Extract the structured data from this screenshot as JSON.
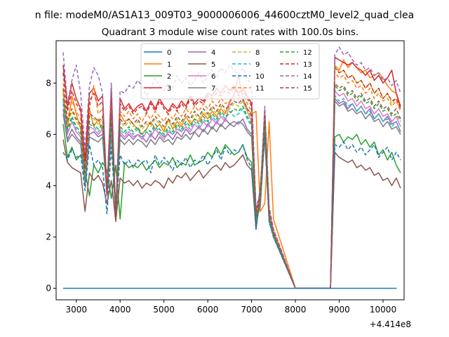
{
  "suptitle": "n file: modeM0/AS1A13_009T03_9000006006_44600cztM0_level2_quad_clea",
  "chart_data": {
    "type": "line",
    "title": "Quadrant 3 module wise count rates with 100.0s bins.",
    "xlabel": "",
    "ylabel": "",
    "offset_label": "+4.414e8",
    "x_offset": 441400000,
    "xlim": [
      2540,
      10480
    ],
    "ylim": [
      -0.45,
      9.65
    ],
    "xticks": [
      3000,
      4000,
      5000,
      6000,
      7000,
      8000,
      9000,
      10000
    ],
    "xtick_labels": [
      "3000",
      "4000",
      "5000",
      "6000",
      "7000",
      "8000",
      "9000",
      "10000"
    ],
    "yticks": [
      0,
      2,
      4,
      6,
      8
    ],
    "ytick_labels": [
      "0",
      "2",
      "4",
      "6",
      "8"
    ],
    "grid": false,
    "legend_position": "top-center",
    "legend_columns": 4,
    "x_start": 2700,
    "x_step": 100,
    "gap_x_range": [
      8000,
      8800
    ],
    "series": [
      {
        "name": "0",
        "color": "#1f77b4",
        "dash": "solid",
        "flat": 0
      },
      {
        "name": "1",
        "color": "#ff7f0e",
        "dash": "solid",
        "pre": [
          7.7,
          6.2,
          7.5,
          6.8,
          6.2,
          4.3,
          7.0,
          6.3,
          6.6,
          6.1,
          3.9,
          7.3,
          3.0,
          6.8,
          6.5,
          6.6,
          6.4,
          6.2,
          6.0,
          6.2,
          6.5,
          6.2,
          6.4,
          6.1,
          6.6,
          6.2,
          6.5,
          6.3,
          6.7,
          6.4,
          6.6,
          6.5,
          6.8,
          6.6,
          6.9,
          6.7,
          7.0,
          6.8,
          7.3,
          7.5,
          8.3,
          7.4,
          7.0,
          6.8,
          6.9,
          3.0,
          3.3,
          6.5,
          2.7
        ],
        "post": [
          8.7,
          8.5,
          8.9,
          8.6,
          8.8,
          8.6,
          8.4,
          8.5,
          8.2,
          8.3,
          8.4,
          8.2,
          7.9,
          7.7,
          7.6,
          7.0
        ]
      },
      {
        "name": "2",
        "color": "#2ca02c",
        "dash": "solid",
        "pre": [
          6.4,
          5.1,
          5.5,
          5.0,
          5.2,
          4.6,
          3.6,
          4.8,
          4.5,
          4.9,
          4.6,
          3.5,
          4.8,
          2.7,
          4.9,
          4.7,
          4.8,
          4.7,
          4.9,
          4.6,
          4.8,
          5.0,
          4.7,
          4.9,
          4.8,
          5.1,
          4.7,
          4.9,
          4.8,
          5.2,
          4.8,
          4.9,
          5.0,
          5.3,
          5.1,
          5.5,
          5.2,
          5.6,
          5.4,
          5.2,
          5.3,
          5.6,
          5.1,
          4.9,
          2.5,
          4.0,
          6.4,
          2.6,
          2.0
        ],
        "post": [
          5.9,
          6.0,
          5.7,
          5.9,
          5.8,
          6.0,
          5.6,
          5.8,
          5.5,
          5.7,
          5.2,
          5.4,
          5.0,
          5.3,
          4.8,
          4.5
        ]
      },
      {
        "name": "3",
        "color": "#d62728",
        "dash": "solid",
        "pre": [
          8.7,
          7.1,
          8.0,
          7.4,
          7.0,
          5.0,
          7.6,
          7.8,
          7.3,
          7.5,
          3.6,
          7.8,
          2.7,
          7.4,
          7.0,
          7.2,
          6.9,
          7.1,
          7.2,
          6.9,
          7.3,
          7.0,
          7.4,
          7.1,
          6.9,
          7.2,
          7.0,
          7.3,
          7.1,
          7.5,
          7.2,
          7.4,
          7.3,
          7.6,
          7.5,
          7.8,
          7.6,
          7.9,
          7.7,
          7.9,
          7.6,
          7.8,
          7.5,
          7.2,
          3.0,
          3.5,
          6.8,
          3.0,
          2.2
        ],
        "post": [
          9.0,
          8.9,
          8.8,
          8.7,
          8.8,
          8.6,
          8.5,
          8.3,
          8.5,
          8.1,
          8.3,
          8.0,
          8.2,
          8.5,
          7.6,
          7.1
        ]
      },
      {
        "name": "4",
        "color": "#9467bd",
        "dash": "solid",
        "pre": [
          7.0,
          5.8,
          6.2,
          5.9,
          5.7,
          4.0,
          6.0,
          6.1,
          5.9,
          6.0,
          3.6,
          6.2,
          2.8,
          6.0,
          5.8,
          6.0,
          5.8,
          6.0,
          5.9,
          5.7,
          6.0,
          5.8,
          6.1,
          5.9,
          6.0,
          5.8,
          6.1,
          5.9,
          6.2,
          6.0,
          6.1,
          6.3,
          6.1,
          6.4,
          6.2,
          6.5,
          6.3,
          6.6,
          6.4,
          6.5,
          6.4,
          6.6,
          6.2,
          6.0,
          2.6,
          3.2,
          6.0,
          2.7,
          2.0
        ],
        "post": [
          7.4,
          7.2,
          7.3,
          7.0,
          7.2,
          6.9,
          7.1,
          6.8,
          7.0,
          6.6,
          6.8,
          6.5,
          6.7,
          6.4,
          6.5,
          6.1
        ]
      },
      {
        "name": "5",
        "color": "#8c564b",
        "dash": "solid",
        "pre": [
          5.8,
          4.9,
          4.7,
          4.6,
          4.5,
          3.0,
          4.5,
          4.2,
          4.4,
          4.1,
          3.3,
          4.2,
          2.6,
          4.3,
          4.1,
          4.2,
          4.0,
          4.2,
          3.9,
          4.1,
          4.0,
          4.2,
          4.1,
          3.9,
          4.3,
          4.1,
          4.4,
          4.3,
          4.5,
          4.2,
          4.4,
          4.6,
          4.3,
          4.5,
          4.7,
          4.8,
          4.6,
          4.9,
          4.7,
          4.8,
          5.0,
          5.2,
          4.8,
          4.6,
          2.3,
          3.6,
          5.9,
          2.7,
          2.1
        ],
        "post": [
          5.3,
          5.1,
          5.0,
          4.9,
          5.0,
          4.7,
          4.8,
          4.6,
          4.7,
          4.4,
          4.5,
          4.2,
          4.3,
          4.0,
          4.3,
          3.9
        ]
      },
      {
        "name": "6",
        "color": "#e377c2",
        "dash": "solid",
        "pre": [
          7.3,
          6.0,
          6.5,
          6.1,
          5.9,
          4.2,
          6.3,
          6.2,
          6.0,
          6.2,
          3.7,
          6.3,
          2.9,
          6.1,
          5.9,
          6.1,
          5.9,
          6.0,
          5.8,
          6.1,
          5.9,
          6.2,
          6.0,
          5.8,
          6.1,
          6.0,
          6.2,
          6.1,
          6.3,
          6.1,
          6.4,
          6.2,
          6.5,
          6.3,
          6.6,
          6.4,
          6.7,
          6.5,
          7.2,
          7.6,
          8.3,
          7.3,
          6.9,
          6.5,
          2.8,
          3.4,
          6.3,
          2.8,
          2.1
        ],
        "post": [
          7.7,
          7.5,
          7.6,
          7.3,
          7.4,
          7.1,
          7.3,
          7.0,
          7.1,
          6.8,
          7.0,
          6.7,
          6.8,
          6.5,
          6.7,
          6.3
        ]
      },
      {
        "name": "7",
        "color": "#7f7f7f",
        "dash": "solid",
        "pre": [
          6.8,
          5.7,
          6.0,
          5.8,
          5.6,
          4.0,
          5.9,
          5.8,
          5.7,
          5.9,
          3.6,
          6.0,
          2.8,
          5.8,
          5.6,
          5.8,
          5.6,
          5.8,
          5.7,
          5.5,
          5.8,
          5.6,
          5.9,
          5.7,
          5.8,
          5.6,
          5.9,
          5.8,
          6.0,
          5.8,
          6.1,
          5.9,
          6.2,
          6.0,
          6.3,
          6.1,
          6.4,
          6.2,
          6.4,
          6.3,
          6.5,
          6.4,
          6.1,
          5.9,
          2.6,
          3.3,
          6.1,
          2.7,
          2.0
        ],
        "post": [
          7.3,
          7.1,
          7.2,
          6.9,
          7.0,
          6.8,
          6.9,
          6.6,
          6.8,
          6.5,
          6.6,
          6.3,
          6.5,
          6.2,
          6.3,
          6.0
        ]
      },
      {
        "name": "8",
        "color": "#bcbd22",
        "dash": "5,3",
        "pre": [
          7.6,
          6.4,
          6.9,
          6.5,
          6.3,
          4.4,
          6.7,
          6.6,
          6.4,
          6.6,
          3.8,
          6.7,
          2.9,
          6.5,
          6.3,
          6.5,
          6.3,
          6.5,
          6.2,
          6.4,
          6.3,
          6.6,
          6.4,
          6.2,
          6.5,
          6.3,
          6.6,
          6.4,
          6.7,
          6.5,
          6.8,
          6.6,
          6.9,
          6.7,
          7.0,
          6.8,
          7.1,
          6.9,
          7.0,
          7.2,
          7.1,
          7.3,
          6.9,
          6.6,
          2.8,
          3.5,
          6.6,
          2.9,
          2.1
        ],
        "post": [
          8.7,
          8.4,
          8.5,
          8.2,
          8.3,
          8.0,
          8.1,
          7.8,
          8.0,
          7.6,
          7.8,
          7.4,
          7.6,
          7.2,
          7.4,
          7.0
        ]
      },
      {
        "name": "9",
        "color": "#17becf",
        "dash": "5,3",
        "pre": [
          7.2,
          6.1,
          6.6,
          6.2,
          6.0,
          4.2,
          6.4,
          6.3,
          6.1,
          6.3,
          3.7,
          6.4,
          2.9,
          6.2,
          6.0,
          6.2,
          6.0,
          6.2,
          5.9,
          6.1,
          6.0,
          6.3,
          6.1,
          5.9,
          6.2,
          6.0,
          6.3,
          6.1,
          6.4,
          6.2,
          6.5,
          6.3,
          6.6,
          6.4,
          6.7,
          6.5,
          6.8,
          6.6,
          6.9,
          6.7,
          6.8,
          7.0,
          6.6,
          6.3,
          2.7,
          3.4,
          6.4,
          2.8,
          2.0
        ],
        "post": [
          7.5,
          7.3,
          7.4,
          7.1,
          7.2,
          6.9,
          7.1,
          6.8,
          6.9,
          6.6,
          6.8,
          6.5,
          6.6,
          6.3,
          6.5,
          6.1
        ]
      },
      {
        "name": "10",
        "color": "#1f77b4",
        "dash": "5,3",
        "pre": [
          5.3,
          5.0,
          5.4,
          5.1,
          5.2,
          3.8,
          5.6,
          4.8,
          5.0,
          4.7,
          2.9,
          5.5,
          2.9,
          5.2,
          4.8,
          5.0,
          4.7,
          5.0,
          4.9,
          5.0,
          4.5,
          5.2,
          4.8,
          5.1,
          4.9,
          4.6,
          5.0,
          4.8,
          5.1,
          4.7,
          5.0,
          4.9,
          5.2,
          4.8,
          5.1,
          5.4,
          5.0,
          5.5,
          5.2,
          5.4,
          5.3,
          5.6,
          5.0,
          4.7,
          2.3,
          3.6,
          6.0,
          2.6,
          2.0
        ],
        "post": [
          5.6,
          5.5,
          5.7,
          5.4,
          5.6,
          5.3,
          5.5,
          5.2,
          5.4,
          5.6,
          5.1,
          5.3,
          5.5,
          5.0,
          5.3,
          5.0
        ]
      },
      {
        "name": "11",
        "color": "#ff7f0e",
        "dash": "5,3",
        "pre": [
          8.0,
          6.6,
          7.3,
          6.9,
          6.6,
          4.6,
          7.0,
          7.9,
          6.8,
          7.0,
          3.9,
          7.2,
          3.0,
          6.9,
          6.7,
          6.9,
          6.6,
          6.8,
          6.5,
          6.8,
          6.6,
          6.9,
          6.7,
          6.5,
          6.8,
          6.6,
          6.9,
          6.7,
          7.0,
          6.8,
          7.1,
          6.9,
          7.2,
          7.0,
          7.3,
          7.1,
          7.4,
          7.2,
          7.3,
          7.5,
          7.4,
          7.6,
          7.2,
          6.9,
          2.9,
          3.6,
          6.9,
          3.0,
          2.2
        ],
        "post": [
          8.4,
          8.2,
          8.3,
          8.0,
          8.1,
          7.8,
          7.9,
          7.6,
          7.8,
          7.4,
          7.6,
          7.3,
          7.4,
          7.1,
          7.3,
          6.9
        ]
      },
      {
        "name": "12",
        "color": "#2ca02c",
        "dash": "5,3",
        "pre": [
          7.4,
          6.2,
          6.7,
          6.3,
          6.1,
          4.3,
          6.5,
          6.4,
          6.2,
          6.4,
          3.7,
          6.5,
          2.9,
          6.3,
          6.1,
          6.3,
          6.1,
          6.3,
          6.0,
          6.2,
          6.1,
          6.4,
          6.2,
          6.0,
          6.3,
          6.1,
          6.4,
          6.2,
          6.5,
          6.3,
          6.6,
          6.4,
          6.7,
          6.5,
          6.8,
          6.6,
          6.9,
          6.7,
          6.8,
          7.0,
          6.9,
          7.1,
          6.7,
          6.4,
          2.7,
          3.4,
          6.5,
          2.8,
          2.1
        ],
        "post": [
          7.9,
          7.7,
          7.8,
          7.5,
          7.6,
          7.3,
          7.5,
          7.2,
          7.3,
          7.0,
          7.2,
          6.9,
          7.0,
          6.7,
          6.8,
          6.5
        ]
      },
      {
        "name": "13",
        "color": "#d62728",
        "dash": "5,3",
        "pre": [
          8.4,
          6.9,
          7.7,
          7.2,
          6.9,
          4.8,
          7.3,
          7.6,
          7.1,
          7.3,
          3.6,
          7.5,
          2.8,
          7.2,
          6.9,
          7.1,
          6.8,
          7.0,
          7.1,
          6.8,
          7.2,
          6.9,
          7.3,
          7.0,
          6.8,
          7.1,
          6.9,
          7.2,
          7.0,
          7.4,
          7.1,
          7.3,
          7.2,
          7.5,
          7.4,
          7.6,
          7.5,
          7.7,
          7.6,
          7.8,
          7.5,
          7.7,
          7.4,
          7.1,
          3.0,
          3.7,
          7.0,
          3.1,
          2.3
        ],
        "post": [
          8.6,
          8.4,
          8.5,
          8.2,
          8.3,
          8.0,
          8.1,
          7.8,
          8.0,
          7.6,
          7.8,
          7.4,
          7.6,
          7.3,
          7.4,
          7.0
        ]
      },
      {
        "name": "14",
        "color": "#9467bd",
        "dash": "5,3",
        "pre": [
          9.2,
          7.2,
          8.1,
          8.7,
          7.6,
          5.4,
          7.9,
          8.6,
          8.3,
          7.6,
          3.8,
          8.0,
          2.9,
          7.7,
          7.6,
          7.9,
          7.8,
          8.1,
          7.9,
          7.5,
          7.8,
          8.2,
          7.9,
          7.7,
          8.0,
          7.8,
          8.3,
          8.0,
          8.2,
          7.9,
          8.1,
          8.4,
          8.0,
          8.3,
          8.5,
          8.2,
          8.6,
          8.4,
          8.7,
          8.5,
          8.3,
          8.6,
          8.2,
          7.8,
          3.1,
          3.8,
          7.1,
          3.2,
          2.3
        ],
        "post": [
          9.1,
          9.4,
          9.1,
          9.2,
          8.9,
          8.7,
          8.8,
          8.5,
          8.6,
          8.3,
          8.4,
          8.1,
          8.2,
          7.9,
          8.1,
          7.6
        ]
      },
      {
        "name": "15",
        "color": "#8c564b",
        "dash": "5,3",
        "pre": [
          7.8,
          6.5,
          7.0,
          6.6,
          6.4,
          4.5,
          6.8,
          6.7,
          6.5,
          6.7,
          3.8,
          6.8,
          3.0,
          6.6,
          6.4,
          6.6,
          6.4,
          6.6,
          6.3,
          6.5,
          6.4,
          6.7,
          6.5,
          6.3,
          6.6,
          6.4,
          6.7,
          6.5,
          6.8,
          6.6,
          6.9,
          6.7,
          7.0,
          6.8,
          7.1,
          6.9,
          7.2,
          7.0,
          7.1,
          7.3,
          7.2,
          7.4,
          7.0,
          6.7,
          2.8,
          3.5,
          6.7,
          2.9,
          2.1
        ],
        "post": [
          8.0,
          7.8,
          7.9,
          7.6,
          7.7,
          7.4,
          7.6,
          7.3,
          7.4,
          7.1,
          7.3,
          7.0,
          7.1,
          6.8,
          7.0,
          6.6
        ]
      }
    ]
  }
}
